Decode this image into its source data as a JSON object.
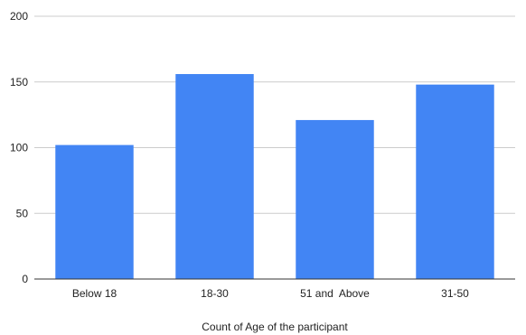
{
  "chart_data": {
    "type": "bar",
    "categories": [
      "Below 18",
      "18-30",
      "51 and  Above",
      "31-50"
    ],
    "values": [
      102,
      156,
      121,
      148
    ],
    "xlabel": "Count of Age of the participant",
    "ylabel": "",
    "ylim": [
      0,
      200
    ],
    "yticks": [
      "0",
      "50",
      "100",
      "150",
      "200"
    ],
    "grid": true,
    "legend": "none",
    "colors": {
      "bar": "#4285f4",
      "grid": "#cccccc",
      "baseline": "#333333",
      "text": "#222222"
    }
  }
}
